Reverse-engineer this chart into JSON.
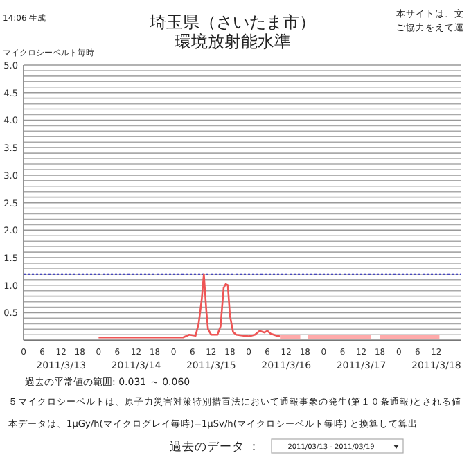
{
  "chart_data": {
    "type": "line",
    "title": "埼玉県（さいたま市）",
    "subtitle": "環境放射能水準",
    "ylabel": "マイクロシーベルト毎時",
    "xlim": [
      "2011-03-13T00:00",
      "2011-03-18T20:00"
    ],
    "xticks": [
      {
        "value": "2011-03-13T00:00",
        "label": "0"
      },
      {
        "value": "2011-03-13T06:00",
        "label": "6"
      },
      {
        "value": "2011-03-13T12:00",
        "label": "12\n2011/3/13"
      },
      {
        "value": "2011-03-13T18:00",
        "label": "18"
      },
      {
        "value": "2011-03-14T00:00",
        "label": "0"
      },
      {
        "value": "2011-03-14T06:00",
        "label": "6"
      },
      {
        "value": "2011-03-14T12:00",
        "label": "12\n2011/3/14"
      },
      {
        "value": "2011-03-14T18:00",
        "label": "18"
      },
      {
        "value": "2011-03-15T00:00",
        "label": "0"
      },
      {
        "value": "2011-03-15T06:00",
        "label": "6"
      },
      {
        "value": "2011-03-15T12:00",
        "label": "12\n2011/3/15"
      },
      {
        "value": "2011-03-15T18:00",
        "label": "18"
      },
      {
        "value": "2011-03-16T00:00",
        "label": "0"
      },
      {
        "value": "2011-03-16T06:00",
        "label": "6"
      },
      {
        "value": "2011-03-16T12:00",
        "label": "12\n2011/3/16"
      },
      {
        "value": "2011-03-16T18:00",
        "label": "18"
      },
      {
        "value": "2011-03-17T00:00",
        "label": "0"
      },
      {
        "value": "2011-03-17T06:00",
        "label": "6"
      },
      {
        "value": "2011-03-17T12:00",
        "label": "12\n2011/3/17"
      },
      {
        "value": "2011-03-17T18:00",
        "label": "18"
      },
      {
        "value": "2011-03-18T00:00",
        "label": "0"
      },
      {
        "value": "2011-03-18T06:00",
        "label": "6"
      },
      {
        "value": "2011-03-18T12:00",
        "label": "12\n2011/3/18"
      }
    ],
    "ylim": [
      0,
      5
    ],
    "yticks": [
      {
        "value": 0,
        "label": null
      },
      {
        "value": 0.1,
        "label": null
      },
      {
        "value": 0.2,
        "label": null
      },
      {
        "value": 0.3,
        "label": null
      },
      {
        "value": 0.4,
        "label": null
      },
      {
        "value": 0.5,
        "label": "0.5"
      },
      {
        "value": 0.6,
        "label": null
      },
      {
        "value": 0.7,
        "label": null
      },
      {
        "value": 0.8,
        "label": null
      },
      {
        "value": 0.9,
        "label": null
      },
      {
        "value": 1,
        "label": "1.0"
      },
      {
        "value": 1.1,
        "label": null
      },
      {
        "value": 1.2,
        "label": null
      },
      {
        "value": 1.3,
        "label": null
      },
      {
        "value": 1.4,
        "label": null
      },
      {
        "value": 1.5,
        "label": "1.5"
      },
      {
        "value": 1.6,
        "label": null
      },
      {
        "value": 1.7,
        "label": null
      },
      {
        "value": 1.8,
        "label": null
      },
      {
        "value": 1.9,
        "label": null
      },
      {
        "value": 2,
        "label": "2.0"
      },
      {
        "value": 2.1,
        "label": null
      },
      {
        "value": 2.2,
        "label": null
      },
      {
        "value": 2.3,
        "label": null
      },
      {
        "value": 2.4,
        "label": null
      },
      {
        "value": 2.5,
        "label": "2.5"
      },
      {
        "value": 2.6,
        "label": null
      },
      {
        "value": 2.7,
        "label": null
      },
      {
        "value": 2.8,
        "label": null
      },
      {
        "value": 2.9,
        "label": null
      },
      {
        "value": 3,
        "label": "3.0"
      },
      {
        "value": 3.1,
        "label": null
      },
      {
        "value": 3.2,
        "label": null
      },
      {
        "value": 3.3,
        "label": null
      },
      {
        "value": 3.4,
        "label": null
      },
      {
        "value": 3.5,
        "label": "3.5"
      },
      {
        "value": 3.6,
        "label": null
      },
      {
        "value": 3.7,
        "label": null
      },
      {
        "value": 3.8,
        "label": null
      },
      {
        "value": 3.9,
        "label": null
      },
      {
        "value": 4,
        "label": "4.0"
      },
      {
        "value": 4.1,
        "label": null
      },
      {
        "value": 4.2,
        "label": null
      },
      {
        "value": 4.3,
        "label": null
      },
      {
        "value": 4.4,
        "label": null
      },
      {
        "value": 4.5,
        "label": "4.5"
      },
      {
        "value": 4.6,
        "label": null
      },
      {
        "value": 4.7,
        "label": null
      },
      {
        "value": 4.8,
        "label": null
      },
      {
        "value": 4.9,
        "label": null
      },
      {
        "value": 5,
        "label": "5.0"
      }
    ],
    "grid": "y",
    "ref_lines": [
      {
        "axis": "y",
        "value": 1.2,
        "color": "#2222bb",
        "line_style": "dotted"
      }
    ],
    "series": [
      {
        "color": "#ee5555",
        "x": [
          "2011-03-14T00:00",
          "2011-03-14T12:00",
          "2011-03-15T03:00",
          "2011-03-15T05:00",
          "2011-03-15T06:00",
          "2011-03-15T07:00",
          "2011-03-15T08:00",
          "2011-03-15T09:00",
          "2011-03-15T09:40",
          "2011-03-15T10:30",
          "2011-03-15T11:00",
          "2011-03-15T12:00",
          "2011-03-15T14:00",
          "2011-03-15T15:00",
          "2011-03-15T16:00",
          "2011-03-15T16:40",
          "2011-03-15T17:20",
          "2011-03-15T18:00",
          "2011-03-15T19:00",
          "2011-03-15T20:00",
          "2011-03-16T00:00",
          "2011-03-16T02:00",
          "2011-03-16T03:30",
          "2011-03-16T05:00",
          "2011-03-16T06:00",
          "2011-03-16T07:00",
          "2011-03-16T09:00",
          "2011-03-16T10:00"
        ],
        "values": [
          0.05,
          0.05,
          0.05,
          0.1,
          0.09,
          0.08,
          0.3,
          0.75,
          1.2,
          0.5,
          0.2,
          0.1,
          0.1,
          0.25,
          0.95,
          1.02,
          1.0,
          0.45,
          0.15,
          0.1,
          0.07,
          0.1,
          0.17,
          0.14,
          0.17,
          0.12,
          0.08,
          0.07
        ]
      },
      {
        "color": "#ffaaaa",
        "x": [
          "2011-03-16T10:00",
          "2011-03-16T16:30",
          "2011-03-16T18:00",
          "2011-03-16T19:00",
          "2011-03-17T15:00",
          "2011-03-17T16:30",
          "2011-03-17T18:00",
          "2011-03-18T13:00"
        ],
        "values": [
          0.06,
          0.06,
          null,
          0.06,
          0.06,
          null,
          0.06,
          0.06
        ]
      }
    ],
    "annotations": [
      "14:06 生成",
      "本サイトは、文",
      "ご協力をえて運",
      "過去の平常値の範囲: 0.031 ～ 0.060",
      "５マイクロシーベルトは、原子力災害対策特別措置法において通報事象の発生(第１０条通報)とされる値",
      "本データは、1μGy/h(マイクログレイ毎時)=1μSv/h(マイクロシーベルト毎時) と換算して算出",
      "過去のデータ ：",
      "2011/03/13 - 2011/03/19"
    ]
  }
}
